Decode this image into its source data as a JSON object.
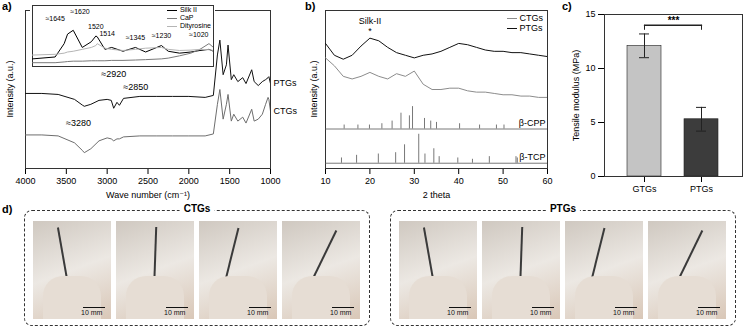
{
  "chart_data": [
    {
      "type": "line",
      "title": "a)",
      "xlabel": "Wave number (cm⁻¹)",
      "ylabel": "Intensity (a.u.)",
      "x": [
        4000,
        3800,
        3600,
        3400,
        3300,
        3280,
        3200,
        3100,
        3000,
        2950,
        2920,
        2880,
        2850,
        2800,
        2600,
        2400,
        2200,
        2000,
        1800,
        1700,
        1650,
        1620,
        1580,
        1540,
        1520,
        1480,
        1450,
        1400,
        1340,
        1300,
        1230,
        1200,
        1150,
        1100,
        1060,
        1030,
        1020,
        1000
      ],
      "xlim": [
        4000,
        1000
      ],
      "xticks": [
        4000,
        3500,
        3000,
        2500,
        2000,
        1500,
        1000
      ],
      "ylim": [
        0,
        16
      ],
      "tick_labels": "x",
      "series": [
        {
          "name": "PTGs",
          "color": "#111111",
          "values": [
            7.6,
            7.6,
            7.5,
            7.0,
            6.4,
            6.3,
            6.5,
            6.9,
            7.0,
            6.9,
            6.1,
            6.7,
            6.4,
            7.1,
            7.3,
            7.3,
            7.3,
            7.3,
            7.2,
            7.4,
            11.5,
            13.0,
            9.5,
            10.5,
            12.5,
            9.0,
            9.5,
            8.8,
            9.2,
            8.6,
            10.0,
            8.8,
            8.4,
            8.8,
            9.0,
            9.2,
            9.3,
            8.6
          ]
        },
        {
          "name": "CTGs",
          "color": "#6e6e6e",
          "values": [
            3.4,
            3.4,
            3.3,
            2.6,
            1.8,
            1.6,
            2.0,
            2.8,
            3.1,
            3.0,
            2.8,
            3.0,
            3.0,
            3.2,
            3.3,
            3.3,
            3.3,
            3.3,
            3.3,
            3.5,
            6.5,
            8.0,
            5.0,
            6.5,
            7.5,
            4.8,
            5.5,
            4.8,
            5.2,
            4.6,
            6.0,
            4.8,
            5.0,
            5.5,
            6.5,
            7.2,
            7.0,
            5.8
          ]
        }
      ],
      "annotations": [
        {
          "text": "≈3280",
          "x": 3350,
          "y": 4.6
        },
        {
          "text": "≈2920",
          "x": 2920,
          "y": 9.6
        },
        {
          "text": "≈2850",
          "x": 2650,
          "y": 8.2
        }
      ]
    },
    {
      "type": "line",
      "x": [
        1800,
        1700,
        1660,
        1645,
        1620,
        1580,
        1540,
        1520,
        1514,
        1480,
        1450,
        1400,
        1345,
        1300,
        1230,
        1200,
        1150,
        1100,
        1060,
        1020,
        1000
      ],
      "xlim": [
        1800,
        1000
      ],
      "ylim": [
        0,
        16
      ],
      "tick_labels": false,
      "legend": "top-right",
      "series": [
        {
          "name": "Silk II",
          "color": "#000000",
          "values": [
            2,
            2.5,
            6,
            8.5,
            9.5,
            5,
            6.5,
            8,
            7.8,
            4.5,
            5,
            4,
            5,
            3.8,
            5.5,
            4,
            3.5,
            3.8,
            4.2,
            4.5,
            4
          ]
        },
        {
          "name": "CaP",
          "color": "#7a7a7a",
          "values": [
            1,
            1,
            1.2,
            1.3,
            1.4,
            1.4,
            1.5,
            1.5,
            1.5,
            1.5,
            1.6,
            1.6,
            1.7,
            1.8,
            2,
            2.2,
            2.8,
            3.5,
            4.5,
            6,
            5
          ]
        },
        {
          "name": "Dityrosine",
          "color": "#b5b5b5",
          "values": [
            3,
            3.2,
            3.5,
            3.8,
            4,
            4.5,
            5,
            5.5,
            6,
            4.8,
            4.5,
            4.2,
            4.5,
            4.8,
            5,
            4.5,
            4.2,
            4.3,
            4.5,
            4.4,
            4.2
          ]
        }
      ],
      "annotations": [
        {
          "text": "≈1645",
          "x": 1700,
          "y": 12.5
        },
        {
          "text": "≈1620",
          "x": 1590,
          "y": 14.3
        },
        {
          "text": "1520",
          "x": 1520,
          "y": 10.5
        },
        {
          "text": "1514",
          "x": 1470,
          "y": 8.5
        },
        {
          "text": "≈1345",
          "x": 1345,
          "y": 7.5
        },
        {
          "text": "≈1230",
          "x": 1230,
          "y": 8.0
        },
        {
          "text": "≈1020",
          "x": 1065,
          "y": 8.2
        }
      ]
    },
    {
      "type": "line",
      "title": "b)",
      "xlabel": "2 theta",
      "ylabel": "Intensity (a.u.)",
      "x": [
        10,
        12,
        14,
        16,
        18,
        20,
        22,
        24,
        26,
        28,
        30,
        32,
        34,
        36,
        38,
        40,
        42,
        44,
        46,
        48,
        50,
        52,
        54,
        56,
        58,
        60
      ],
      "xlim": [
        10,
        60
      ],
      "xticks": [
        10,
        20,
        30,
        40,
        50,
        60
      ],
      "ylim": [
        0,
        12
      ],
      "tick_labels": "x",
      "legend": "top-right",
      "series": [
        {
          "name": "CTGs",
          "color": "#8c8c8c",
          "values": [
            8.4,
            7.8,
            7.0,
            6.8,
            7.0,
            7.3,
            7.0,
            6.8,
            7.2,
            7.0,
            7.4,
            6.4,
            6.0,
            6.0,
            6.1,
            6.1,
            5.9,
            5.8,
            5.8,
            5.7,
            5.6,
            5.6,
            5.5,
            5.5,
            5.4,
            5.4
          ]
        },
        {
          "name": "PTGs",
          "color": "#111111",
          "values": [
            9.5,
            8.6,
            8.3,
            8.6,
            9.3,
            9.9,
            9.7,
            9.2,
            8.8,
            8.6,
            8.4,
            8.6,
            8.7,
            8.9,
            9.2,
            9.5,
            9.4,
            9.2,
            9.0,
            8.9,
            8.9,
            8.8,
            8.8,
            8.7,
            8.6,
            8.5
          ]
        },
        {
          "name": "β-CPP",
          "type": "stick",
          "color": "#555555",
          "base": 3.0,
          "x": [
            14.2,
            17.3,
            19.9,
            22.7,
            25.0,
            27.0,
            28.9,
            29.6,
            32.3,
            33.7,
            35.0,
            40.2,
            44.7,
            48.5,
            50.2
          ],
          "values": [
            3.3,
            3.3,
            3.3,
            3.4,
            3.6,
            4.2,
            4.0,
            4.7,
            3.8,
            3.6,
            3.5,
            3.4,
            3.3,
            3.3,
            3.3
          ]
        },
        {
          "name": "β-TCP",
          "type": "stick",
          "color": "#555555",
          "base": 0.4,
          "x": [
            13.6,
            17.0,
            21.9,
            25.8,
            27.8,
            31.0,
            32.4,
            34.4,
            35.6,
            39.8,
            43.1,
            46.9,
            52.9,
            53.2
          ],
          "values": [
            0.8,
            1.0,
            1.1,
            1.2,
            1.8,
            2.6,
            1.1,
            1.5,
            0.9,
            0.8,
            0.7,
            0.9,
            0.9,
            0.8
          ]
        }
      ],
      "annotations": [
        {
          "text": "Silk-II",
          "x": 20,
          "y": 11.2
        },
        {
          "text": "*",
          "x": 20,
          "y": 10.4
        }
      ]
    },
    {
      "type": "bar",
      "title": "c)",
      "ylabel": "Tensile modulus (MPa)",
      "categories": [
        "GTGs",
        "PTGs"
      ],
      "values": [
        12.1,
        5.3
      ],
      "errors": [
        1.1,
        1.1
      ],
      "colors": [
        "#c4c4c4",
        "#3c3c3c"
      ],
      "ylim": [
        0,
        15
      ],
      "yticks": [
        0,
        5,
        10,
        15
      ],
      "significance": {
        "text": "***",
        "between": [
          "GTGs",
          "PTGs"
        ],
        "y": 14
      }
    }
  ],
  "photo_panel": {
    "title": "d)",
    "groups": [
      {
        "title": "CTGs",
        "photos": [
          {
            "scale_bar": "10 mm"
          },
          {
            "scale_bar": "10 mm"
          },
          {
            "scale_bar": "10 mm"
          },
          {
            "scale_bar": "10 mm"
          }
        ]
      },
      {
        "title": "PTGs",
        "photos": [
          {
            "scale_bar": "10 mm"
          },
          {
            "scale_bar": "10 mm"
          },
          {
            "scale_bar": "10 mm"
          },
          {
            "scale_bar": "10 mm"
          }
        ]
      }
    ]
  }
}
